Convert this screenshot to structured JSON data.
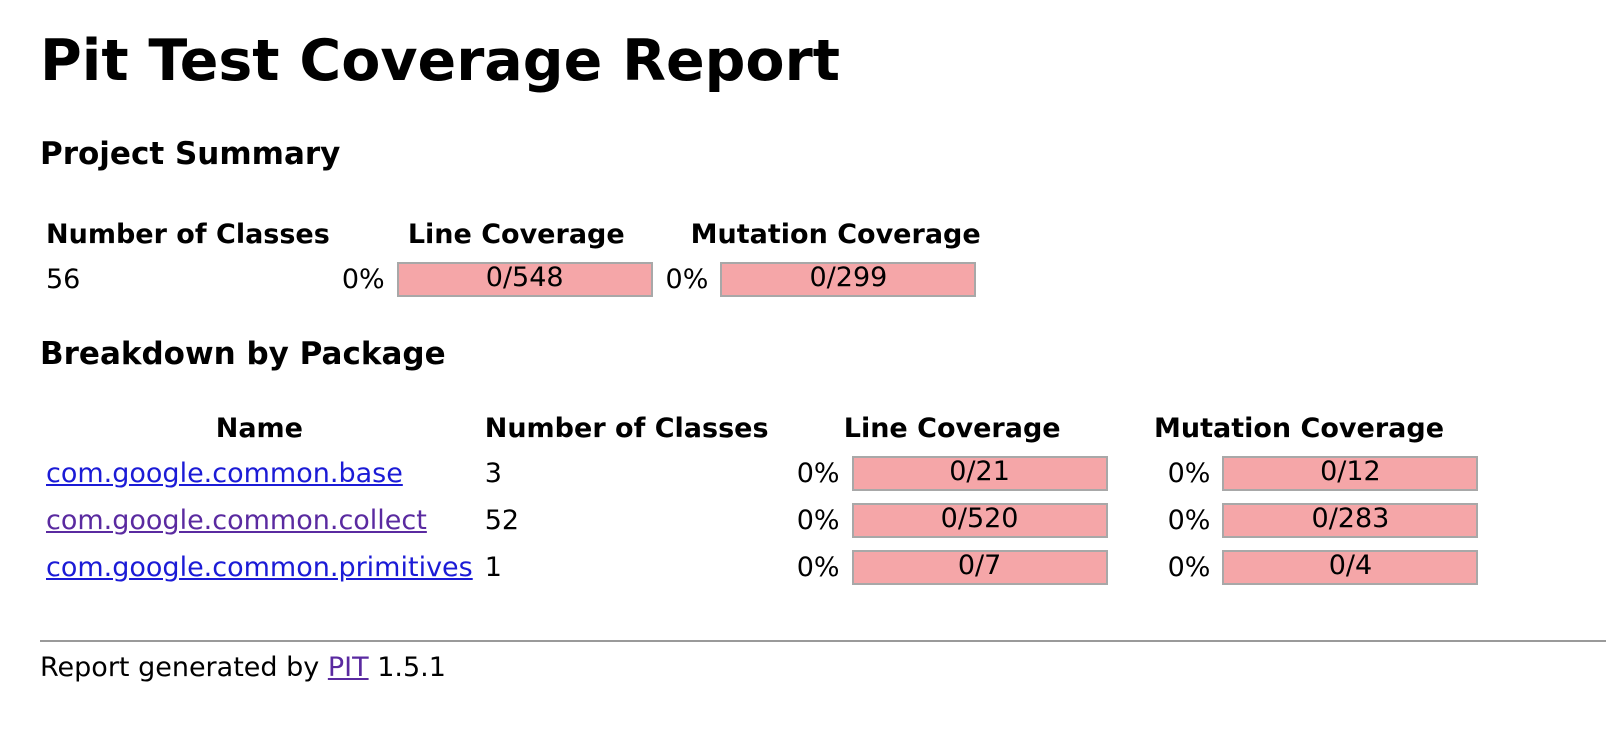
{
  "title": "Pit Test Coverage Report",
  "summary": {
    "heading": "Project Summary",
    "headers": {
      "classes": "Number of Classes",
      "line": "Line Coverage",
      "mutation": "Mutation Coverage"
    },
    "row": {
      "classes": "56",
      "line_pct": "0%",
      "line_ratio": "0/548",
      "mutation_pct": "0%",
      "mutation_ratio": "0/299"
    }
  },
  "breakdown": {
    "heading": "Breakdown by Package",
    "headers": {
      "name": "Name",
      "classes": "Number of Classes",
      "line": "Line Coverage",
      "mutation": "Mutation Coverage"
    },
    "rows": [
      {
        "name": "com.google.common.base",
        "classes": "3",
        "line_pct": "0%",
        "line_ratio": "0/21",
        "mutation_pct": "0%",
        "mutation_ratio": "0/12"
      },
      {
        "name": "com.google.common.collect",
        "classes": "52",
        "line_pct": "0%",
        "line_ratio": "0/520",
        "mutation_pct": "0%",
        "mutation_ratio": "0/283"
      },
      {
        "name": "com.google.common.primitives",
        "classes": "1",
        "line_pct": "0%",
        "line_ratio": "0/7",
        "mutation_pct": "0%",
        "mutation_ratio": "0/4"
      }
    ]
  },
  "footer": {
    "prefix": "Report generated by",
    "link": "PIT",
    "version": "1.5.1"
  },
  "colors": {
    "bar_fill": "#f5a6a8",
    "bar_border": "#a8a8a8",
    "link": "#1b1bd6",
    "visited_link": "#5a2aa0"
  }
}
